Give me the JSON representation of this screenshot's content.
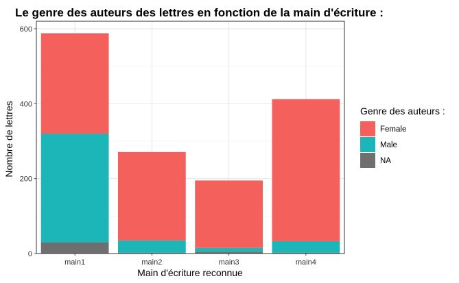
{
  "chart_data": {
    "type": "bar",
    "stacked": true,
    "title": "Le genre des auteurs des lettres en fonction de la main d'écriture :",
    "xlabel": "Main d'écriture reconnue",
    "ylabel": "Nombre de lettres",
    "categories": [
      "main1",
      "main2",
      "main3",
      "main4"
    ],
    "series": [
      {
        "name": "NA",
        "color": "#6f6f6f",
        "values": [
          30,
          2,
          5,
          2
        ]
      },
      {
        "name": "Male",
        "color": "#1cb6b9",
        "values": [
          290,
          33,
          10,
          31
        ]
      },
      {
        "name": "Female",
        "color": "#f4615d",
        "values": [
          268,
          236,
          180,
          379
        ]
      }
    ],
    "ylim": [
      0,
      620
    ],
    "yticks": [
      0,
      200,
      400,
      600
    ],
    "grid": true,
    "legend": {
      "title": "Genre des auteurs :",
      "placement": "right",
      "order": [
        "Female",
        "Male",
        "NA"
      ]
    }
  }
}
